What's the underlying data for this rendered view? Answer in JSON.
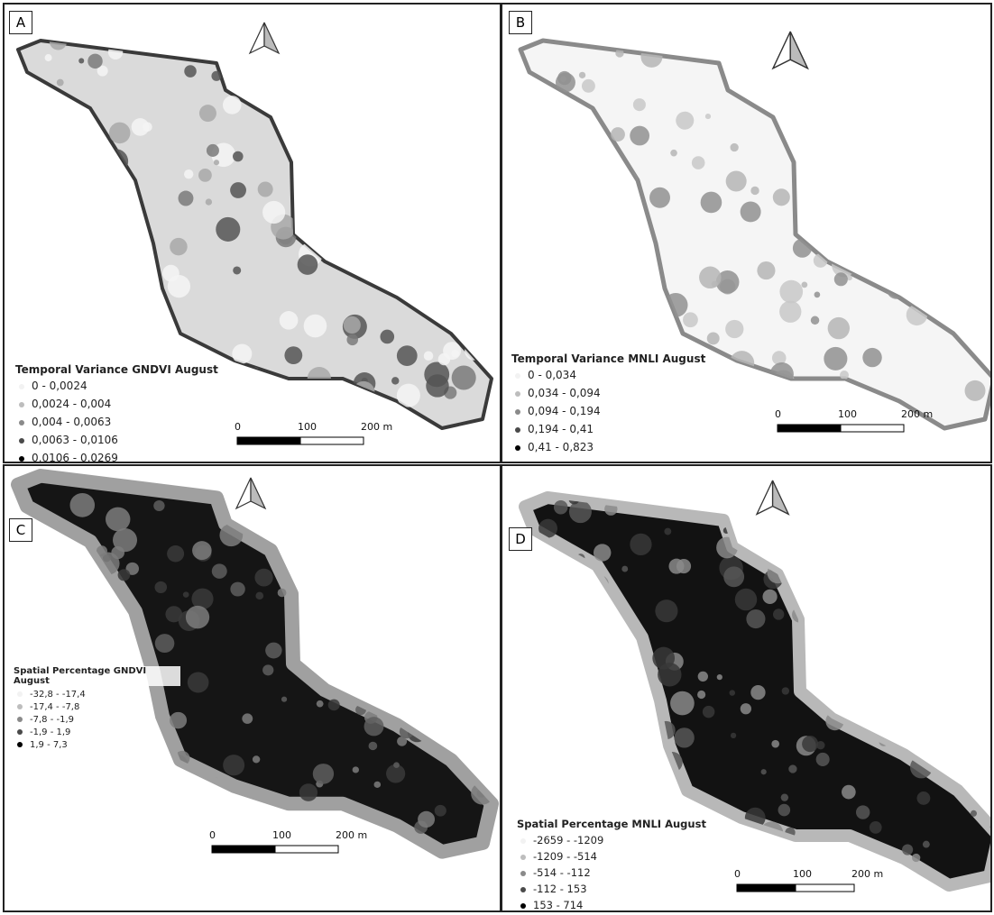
{
  "panels": [
    {
      "label": "A",
      "legend_title": "Temporal Variance GNDVI August",
      "legend": [
        {
          "label": "0 - 0,0024",
          "color": "#f2f2f2"
        },
        {
          "label": "0,0024 - 0,004",
          "color": "#bdbdbd"
        },
        {
          "label": "0,004 - 0,0063",
          "color": "#8a8a8a"
        },
        {
          "label": "0,0063 - 0,0106",
          "color": "#4a4a4a"
        },
        {
          "label": "0,0106 - 0,0269",
          "color": "#000000"
        }
      ],
      "scale": [
        "0",
        "100",
        "200 m"
      ]
    },
    {
      "label": "B",
      "legend_title": "Temporal Variance MNLI August",
      "legend": [
        {
          "label": "0 - 0,034",
          "color": "#f2f2f2"
        },
        {
          "label": "0,034 - 0,094",
          "color": "#bdbdbd"
        },
        {
          "label": "0,094 - 0,194",
          "color": "#8a8a8a"
        },
        {
          "label": "0,194 - 0,41",
          "color": "#4a4a4a"
        },
        {
          "label": "0,41 - 0,823",
          "color": "#000000"
        }
      ],
      "scale": [
        "0",
        "100",
        "200 m"
      ]
    },
    {
      "label": "C",
      "legend_title": "Spatial Percentage GNDVI August",
      "legend": [
        {
          "label": "-32,8 - -17,4",
          "color": "#f2f2f2"
        },
        {
          "label": "-17,4 - -7,8",
          "color": "#bdbdbd"
        },
        {
          "label": "-7,8 - -1,9",
          "color": "#8a8a8a"
        },
        {
          "label": "-1,9 - 1,9",
          "color": "#4a4a4a"
        },
        {
          "label": "1,9 - 7,3",
          "color": "#000000"
        }
      ],
      "scale": [
        "0",
        "100",
        "200 m"
      ]
    },
    {
      "label": "D",
      "legend_title": "Spatial Percentage MNLI August",
      "legend": [
        {
          "label": "-2659 - -1209",
          "color": "#f2f2f2"
        },
        {
          "label": "-1209 - -514",
          "color": "#bdbdbd"
        },
        {
          "label": "-514 - -112",
          "color": "#8a8a8a"
        },
        {
          "label": "-112 - 153",
          "color": "#4a4a4a"
        },
        {
          "label": "153 - 714",
          "color": "#000000"
        }
      ],
      "scale": [
        "0",
        "100",
        "200 m"
      ]
    }
  ]
}
